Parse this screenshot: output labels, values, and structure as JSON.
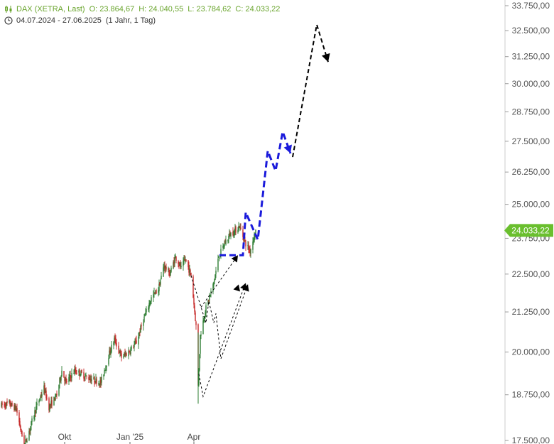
{
  "header": {
    "instrument": "DAX (XETRA, Last)",
    "open_label": "O:",
    "open_value": "23.864,67",
    "high_label": "H:",
    "high_value": "24.040,55",
    "low_label": "L:",
    "low_value": "23.784,62",
    "close_label": "C:",
    "close_value": "24.033,22",
    "date_range": "04.07.2024 - 27.06.2025",
    "period": "(1 Jahr, 1 Tag)"
  },
  "last_price_label": "24.033,22",
  "colors": {
    "up": "#2e7d32",
    "down": "#c62828",
    "projection_blue": "#1a1adb",
    "projection_black": "#000000",
    "price_tag": "#6abf2e",
    "axis_line": "#cccccc"
  },
  "chart_data": {
    "type": "candlestick",
    "title": "DAX (XETRA, Last)",
    "y_scale": "log",
    "ylim": [
      17500,
      33750
    ],
    "y_ticks": [
      {
        "value": 33750,
        "label": "33.750,00"
      },
      {
        "value": 32500,
        "label": "32.500,00"
      },
      {
        "value": 31250,
        "label": "31.250,00"
      },
      {
        "value": 30000,
        "label": "30.000,00"
      },
      {
        "value": 28750,
        "label": "28.750,00"
      },
      {
        "value": 27500,
        "label": "27.500,00"
      },
      {
        "value": 26250,
        "label": "26.250,00"
      },
      {
        "value": 25000,
        "label": "25.000,00"
      },
      {
        "value": 23750,
        "label": "23.750,00"
      },
      {
        "value": 22500,
        "label": "22.500,00"
      },
      {
        "value": 21250,
        "label": "21.250,00"
      },
      {
        "value": 20000,
        "label": "20.000,00"
      },
      {
        "value": 18750,
        "label": "18.750,00"
      },
      {
        "value": 17500,
        "label": "17.500,00"
      }
    ],
    "x_ticks": [
      {
        "date": "2024-10-01",
        "label": "Okt"
      },
      {
        "date": "2025-01-01",
        "label": "Jan '25"
      },
      {
        "date": "2025-04-01",
        "label": "Apr"
      }
    ],
    "price_path": [
      [
        "2024-07-04",
        18450
      ],
      [
        "2024-07-15",
        18500
      ],
      [
        "2024-07-25",
        18350
      ],
      [
        "2024-08-05",
        17350
      ],
      [
        "2024-08-12",
        17750
      ],
      [
        "2024-08-22",
        18400
      ],
      [
        "2024-09-02",
        18950
      ],
      [
        "2024-09-09",
        18400
      ],
      [
        "2024-09-20",
        18750
      ],
      [
        "2024-09-27",
        19450
      ],
      [
        "2024-10-03",
        19100
      ],
      [
        "2024-10-15",
        19450
      ],
      [
        "2024-10-25",
        19350
      ],
      [
        "2024-11-01",
        19250
      ],
      [
        "2024-11-08",
        19200
      ],
      [
        "2024-11-21",
        19100
      ],
      [
        "2024-12-02",
        19900
      ],
      [
        "2024-12-10",
        20400
      ],
      [
        "2024-12-20",
        19850
      ],
      [
        "2024-12-30",
        20000
      ],
      [
        "2025-01-10",
        20300
      ],
      [
        "2025-01-20",
        21000
      ],
      [
        "2025-01-31",
        21700
      ],
      [
        "2025-02-10",
        22000
      ],
      [
        "2025-02-18",
        22800
      ],
      [
        "2025-02-26",
        22500
      ],
      [
        "2025-03-06",
        23100
      ],
      [
        "2025-03-14",
        22700
      ],
      [
        "2025-03-20",
        23000
      ],
      [
        "2025-03-28",
        22450
      ],
      [
        "2025-04-04",
        20800
      ],
      [
        "2025-04-07",
        19000
      ],
      [
        "2025-04-10",
        20500
      ],
      [
        "2025-04-17",
        21300
      ],
      [
        "2025-04-28",
        22100
      ],
      [
        "2025-05-06",
        23100
      ],
      [
        "2025-05-15",
        23600
      ],
      [
        "2025-05-22",
        23900
      ],
      [
        "2025-05-28",
        24000
      ],
      [
        "2025-06-04",
        24200
      ],
      [
        "2025-06-12",
        23600
      ],
      [
        "2025-06-19",
        23300
      ],
      [
        "2025-06-27",
        24033
      ]
    ],
    "series": [
      {
        "style": "blue-bold-dashed",
        "points": [
          [
            "2025-05-07",
            23150
          ],
          [
            "2025-06-09",
            23150
          ],
          [
            "2025-06-13",
            24700
          ],
          [
            "2025-06-30",
            23700
          ],
          [
            "2025-07-14",
            27100
          ],
          [
            "2025-07-25",
            26300
          ],
          [
            "2025-08-04",
            27900
          ],
          [
            "2025-08-15",
            27000
          ]
        ]
      },
      {
        "style": "black-dashed",
        "points": [
          [
            "2025-08-18",
            26850
          ],
          [
            "2025-09-21",
            32800
          ],
          [
            "2025-10-07",
            31000
          ]
        ]
      },
      {
        "style": "black-thin-dashed",
        "points": [
          [
            "2025-04-08",
            19350
          ],
          [
            "2025-04-14",
            18700
          ],
          [
            "2025-06-13",
            22200
          ]
        ]
      },
      {
        "style": "black-thin-dashed",
        "points": [
          [
            "2025-03-28",
            22450
          ],
          [
            "2025-04-18",
            20900
          ],
          [
            "2025-04-22",
            21600
          ],
          [
            "2025-04-29",
            20900
          ],
          [
            "2025-05-02",
            21200
          ],
          [
            "2025-05-09",
            19800
          ],
          [
            "2025-06-16",
            22150
          ]
        ]
      },
      {
        "style": "black-thin-dashed",
        "points": [
          [
            "2025-04-11",
            21400
          ],
          [
            "2025-06-02",
            23150
          ]
        ]
      }
    ]
  }
}
